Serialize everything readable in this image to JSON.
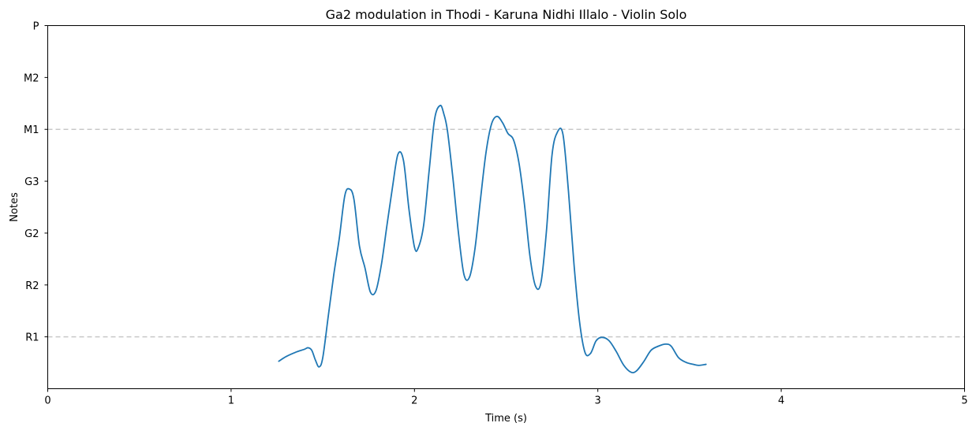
{
  "chart_data": {
    "type": "line",
    "title": "Ga2 modulation in Thodi - Karuna Nidhi Illalo - Violin Solo",
    "xlabel": "Time (s)",
    "ylabel": "Notes",
    "xlim": [
      0,
      5
    ],
    "ylim": [
      0,
      7
    ],
    "x_ticks": [
      {
        "value": 0,
        "label": "0"
      },
      {
        "value": 1,
        "label": "1"
      },
      {
        "value": 2,
        "label": "2"
      },
      {
        "value": 3,
        "label": "3"
      },
      {
        "value": 4,
        "label": "4"
      },
      {
        "value": 5,
        "label": "5"
      }
    ],
    "y_ticks": [
      {
        "value": 1,
        "label": "R1"
      },
      {
        "value": 2,
        "label": "R2"
      },
      {
        "value": 3,
        "label": "G2"
      },
      {
        "value": 4,
        "label": "G3"
      },
      {
        "value": 5,
        "label": "M1"
      },
      {
        "value": 6,
        "label": "M2"
      },
      {
        "value": 7,
        "label": "P"
      }
    ],
    "reference_lines": [
      {
        "y": 1,
        "label": "R1",
        "style": "dashed",
        "color": "#c8c8c8"
      },
      {
        "y": 5,
        "label": "M1",
        "style": "dashed",
        "color": "#c8c8c8"
      }
    ],
    "grid": false,
    "legend": "none",
    "series": [
      {
        "color": "#1f77b4",
        "x": [
          1.26,
          1.3,
          1.35,
          1.4,
          1.42,
          1.44,
          1.46,
          1.48,
          1.5,
          1.53,
          1.56,
          1.59,
          1.62,
          1.645,
          1.67,
          1.7,
          1.73,
          1.76,
          1.79,
          1.82,
          1.85,
          1.88,
          1.91,
          1.94,
          1.97,
          2.0,
          2.02,
          2.05,
          2.08,
          2.11,
          2.14,
          2.16,
          2.18,
          2.21,
          2.24,
          2.27,
          2.3,
          2.33,
          2.36,
          2.39,
          2.42,
          2.45,
          2.48,
          2.51,
          2.54,
          2.57,
          2.6,
          2.63,
          2.66,
          2.69,
          2.72,
          2.75,
          2.78,
          2.81,
          2.84,
          2.87,
          2.9,
          2.93,
          2.96,
          2.99,
          3.02,
          3.06,
          3.1,
          3.14,
          3.18,
          3.21,
          3.25,
          3.29,
          3.33,
          3.37,
          3.4,
          3.44,
          3.48,
          3.52,
          3.55,
          3.59
        ],
        "y": [
          0.53,
          0.62,
          0.7,
          0.76,
          0.79,
          0.74,
          0.55,
          0.42,
          0.6,
          1.4,
          2.2,
          2.9,
          3.72,
          3.85,
          3.65,
          2.75,
          2.33,
          1.86,
          1.89,
          2.4,
          3.15,
          3.88,
          4.52,
          4.4,
          3.46,
          2.73,
          2.71,
          3.15,
          4.2,
          5.2,
          5.46,
          5.3,
          4.97,
          4.05,
          3.0,
          2.2,
          2.15,
          2.7,
          3.65,
          4.55,
          5.1,
          5.25,
          5.13,
          4.92,
          4.8,
          4.35,
          3.55,
          2.55,
          1.98,
          2.05,
          3.05,
          4.5,
          4.95,
          4.9,
          3.8,
          2.4,
          1.3,
          0.7,
          0.68,
          0.92,
          0.99,
          0.93,
          0.72,
          0.46,
          0.32,
          0.34,
          0.52,
          0.74,
          0.82,
          0.86,
          0.82,
          0.6,
          0.51,
          0.47,
          0.45,
          0.47
        ]
      }
    ]
  }
}
